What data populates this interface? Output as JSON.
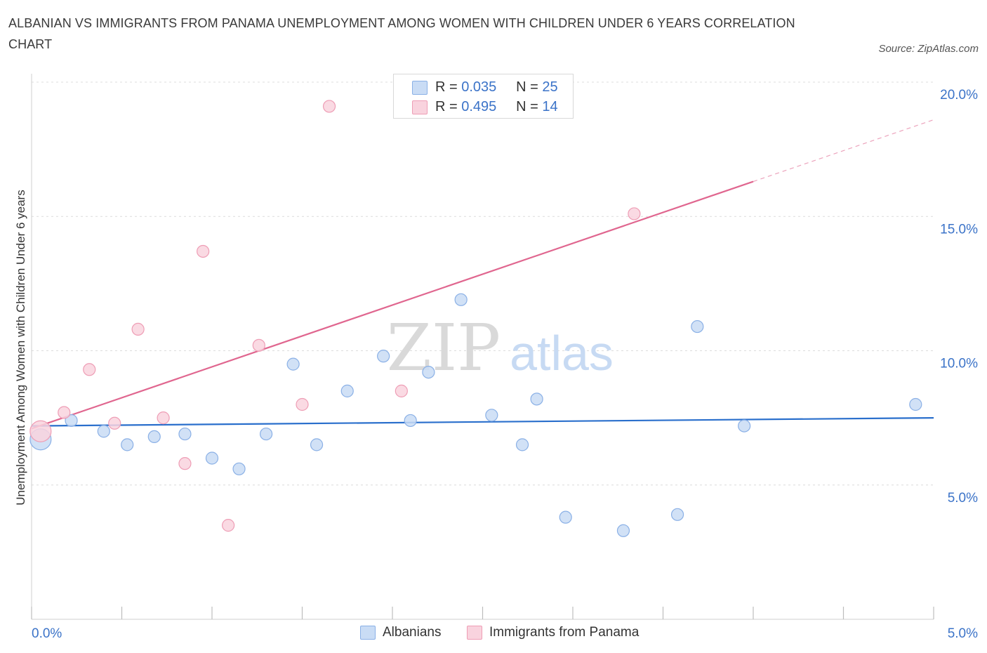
{
  "title": "ALBANIAN VS IMMIGRANTS FROM PANAMA UNEMPLOYMENT AMONG WOMEN WITH CHILDREN UNDER 6 YEARS CORRELATION CHART",
  "source": "Source: ZipAtlas.com",
  "watermark": {
    "zip": "ZIP",
    "atlas": "atlas"
  },
  "legend": {
    "series1": {
      "r_label": "R = ",
      "r_value": "0.035",
      "n_label": "N = ",
      "n_value": "25"
    },
    "series2": {
      "r_label": "R = ",
      "r_value": "0.495",
      "n_label": "N = ",
      "n_value": "14"
    }
  },
  "colors": {
    "blue_fill": "#c9dcf5",
    "blue_stroke": "#8ab0e6",
    "blue_line": "#2a6fcc",
    "pink_fill": "#f9d3de",
    "pink_stroke": "#ee9db5",
    "pink_line": "#e0668f",
    "tick_label": "#3b73c8",
    "grid": "#dcdcdc"
  },
  "chart_data": {
    "type": "scatter",
    "title": "ALBANIAN VS IMMIGRANTS FROM PANAMA UNEMPLOYMENT AMONG WOMEN WITH CHILDREN UNDER 6 YEARS CORRELATION CHART",
    "xlabel": "",
    "ylabel": "Unemployment Among Women with Children Under 6 years",
    "xlim": [
      0,
      5
    ],
    "ylim": [
      0,
      20
    ],
    "x_tick_labels": [
      "0.0%",
      "5.0%"
    ],
    "y_ticks": [
      5,
      10,
      15,
      20
    ],
    "y_tick_labels": [
      "5.0%",
      "10.0%",
      "15.0%",
      "20.0%"
    ],
    "series": [
      {
        "name": "Albanians",
        "points": [
          {
            "x": 0.05,
            "y": 6.7,
            "size": "large"
          },
          {
            "x": 0.22,
            "y": 7.4
          },
          {
            "x": 0.4,
            "y": 7.0
          },
          {
            "x": 0.53,
            "y": 6.5
          },
          {
            "x": 0.68,
            "y": 6.8
          },
          {
            "x": 0.85,
            "y": 6.9
          },
          {
            "x": 1.0,
            "y": 6.0
          },
          {
            "x": 1.15,
            "y": 5.6
          },
          {
            "x": 1.3,
            "y": 6.9
          },
          {
            "x": 1.45,
            "y": 9.5
          },
          {
            "x": 1.58,
            "y": 6.5
          },
          {
            "x": 1.75,
            "y": 8.5
          },
          {
            "x": 1.95,
            "y": 9.8
          },
          {
            "x": 2.1,
            "y": 7.4
          },
          {
            "x": 2.2,
            "y": 9.2
          },
          {
            "x": 2.38,
            "y": 11.9
          },
          {
            "x": 2.55,
            "y": 7.6
          },
          {
            "x": 2.72,
            "y": 6.5
          },
          {
            "x": 2.8,
            "y": 8.2
          },
          {
            "x": 2.96,
            "y": 3.8
          },
          {
            "x": 3.28,
            "y": 3.3
          },
          {
            "x": 3.58,
            "y": 3.9
          },
          {
            "x": 3.69,
            "y": 10.9
          },
          {
            "x": 3.95,
            "y": 7.2
          },
          {
            "x": 4.9,
            "y": 8.0
          }
        ],
        "trend": {
          "x0": 0.0,
          "y0": 7.2,
          "x1": 5.0,
          "y1": 7.5
        }
      },
      {
        "name": "Immigrants from Panama",
        "points": [
          {
            "x": 0.05,
            "y": 7.0,
            "size": "large"
          },
          {
            "x": 0.18,
            "y": 7.7
          },
          {
            "x": 0.32,
            "y": 9.3
          },
          {
            "x": 0.46,
            "y": 7.3
          },
          {
            "x": 0.59,
            "y": 10.8
          },
          {
            "x": 0.73,
            "y": 7.5
          },
          {
            "x": 0.85,
            "y": 5.8
          },
          {
            "x": 0.95,
            "y": 13.7
          },
          {
            "x": 1.09,
            "y": 3.5
          },
          {
            "x": 1.26,
            "y": 10.2
          },
          {
            "x": 1.5,
            "y": 8.0
          },
          {
            "x": 1.65,
            "y": 19.1
          },
          {
            "x": 2.05,
            "y": 8.5
          },
          {
            "x": 3.34,
            "y": 15.1
          }
        ],
        "trend": {
          "x0": 0.0,
          "y0": 7.1,
          "x1": 4.0,
          "y1": 16.3,
          "dash_x1": 5.0,
          "dash_y1": 18.6
        }
      }
    ],
    "legend": [
      "Albanians",
      "Immigrants from Panama"
    ]
  }
}
